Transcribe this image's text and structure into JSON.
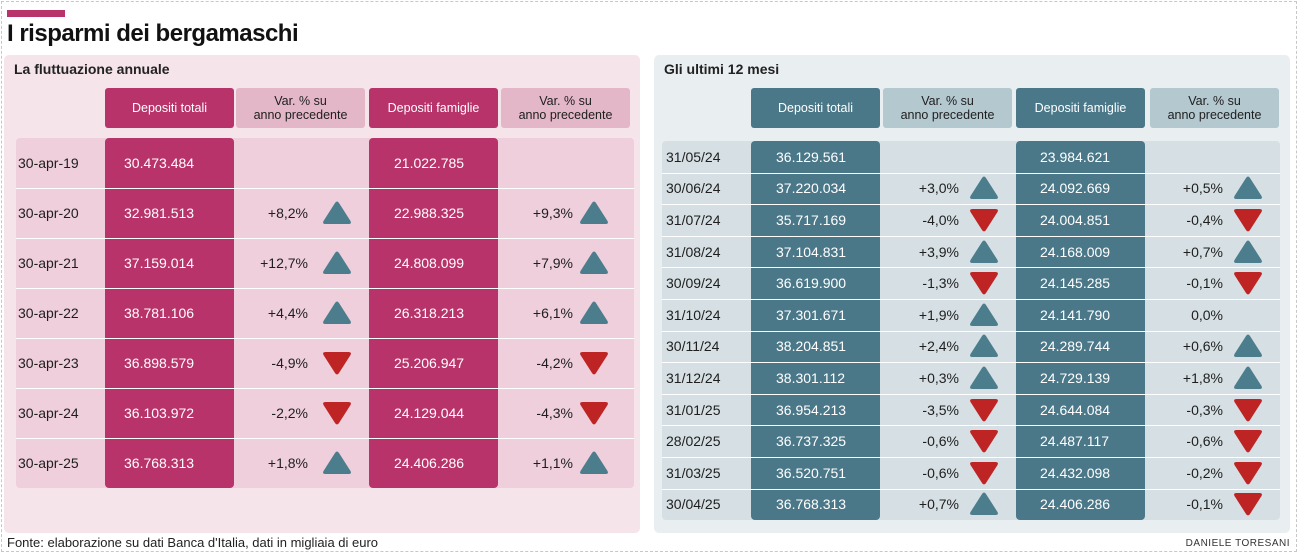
{
  "title": "I risparmi dei bergamaschi",
  "source": "Fonte: elaborazione su dati Banca d'Italia, dati in migliaia di euro",
  "credit": "DANIELE TORESANI",
  "colors": {
    "left_accent": "#b8336a",
    "left_accent_light": "#e4b7c8",
    "right_accent": "#4a7889",
    "right_accent_light": "#b4c8d0",
    "arrow_up": "#4b7d8c",
    "arrow_down": "#be2424"
  },
  "chart_data": [
    {
      "type": "table",
      "title": "La fluttuazione annuale",
      "columns": [
        "Depositi totali",
        "Var. % su\nanno precedente",
        "Depositi famiglie",
        "Var. % su\nanno precedente"
      ],
      "rows": [
        {
          "date": "30-apr-19",
          "totali": "30.473.484",
          "var_totali": "",
          "dir_totali": "",
          "famiglie": "21.022.785",
          "var_famiglie": "",
          "dir_famiglie": ""
        },
        {
          "date": "30-apr-20",
          "totali": "32.981.513",
          "var_totali": "+8,2%",
          "dir_totali": "up",
          "famiglie": "22.988.325",
          "var_famiglie": "+9,3%",
          "dir_famiglie": "up"
        },
        {
          "date": "30-apr-21",
          "totali": "37.159.014",
          "var_totali": "+12,7%",
          "dir_totali": "up",
          "famiglie": "24.808.099",
          "var_famiglie": "+7,9%",
          "dir_famiglie": "up"
        },
        {
          "date": "30-apr-22",
          "totali": "38.781.106",
          "var_totali": "+4,4%",
          "dir_totali": "up",
          "famiglie": "26.318.213",
          "var_famiglie": "+6,1%",
          "dir_famiglie": "up"
        },
        {
          "date": "30-apr-23",
          "totali": "36.898.579",
          "var_totali": "-4,9%",
          "dir_totali": "down",
          "famiglie": "25.206.947",
          "var_famiglie": "-4,2%",
          "dir_famiglie": "down"
        },
        {
          "date": "30-apr-24",
          "totali": "36.103.972",
          "var_totali": "-2,2%",
          "dir_totali": "down",
          "famiglie": "24.129.044",
          "var_famiglie": "-4,3%",
          "dir_famiglie": "down"
        },
        {
          "date": "30-apr-25",
          "totali": "36.768.313",
          "var_totali": "+1,8%",
          "dir_totali": "up",
          "famiglie": "24.406.286",
          "var_famiglie": "+1,1%",
          "dir_famiglie": "up"
        }
      ]
    },
    {
      "type": "table",
      "title": "Gli ultimi 12 mesi",
      "columns": [
        "Depositi totali",
        "Var. % su\nanno precedente",
        "Depositi famiglie",
        "Var. % su\nanno precedente"
      ],
      "rows": [
        {
          "date": "31/05/24",
          "totali": "36.129.561",
          "var_totali": "",
          "dir_totali": "",
          "famiglie": "23.984.621",
          "var_famiglie": "",
          "dir_famiglie": ""
        },
        {
          "date": "30/06/24",
          "totali": "37.220.034",
          "var_totali": "+3,0%",
          "dir_totali": "up",
          "famiglie": "24.092.669",
          "var_famiglie": "+0,5%",
          "dir_famiglie": "up"
        },
        {
          "date": "31/07/24",
          "totali": "35.717.169",
          "var_totali": "-4,0%",
          "dir_totali": "down",
          "famiglie": "24.004.851",
          "var_famiglie": "-0,4%",
          "dir_famiglie": "down"
        },
        {
          "date": "31/08/24",
          "totali": "37.104.831",
          "var_totali": "+3,9%",
          "dir_totali": "up",
          "famiglie": "24.168.009",
          "var_famiglie": "+0,7%",
          "dir_famiglie": "up"
        },
        {
          "date": "30/09/24",
          "totali": "36.619.900",
          "var_totali": "-1,3%",
          "dir_totali": "down",
          "famiglie": "24.145.285",
          "var_famiglie": "-0,1%",
          "dir_famiglie": "down"
        },
        {
          "date": "31/10/24",
          "totali": "37.301.671",
          "var_totali": "+1,9%",
          "dir_totali": "up",
          "famiglie": "24.141.790",
          "var_famiglie": "0,0%",
          "dir_famiglie": ""
        },
        {
          "date": "30/11/24",
          "totali": "38.204.851",
          "var_totali": "+2,4%",
          "dir_totali": "up",
          "famiglie": "24.289.744",
          "var_famiglie": "+0,6%",
          "dir_famiglie": "up"
        },
        {
          "date": "31/12/24",
          "totali": "38.301.112",
          "var_totali": "+0,3%",
          "dir_totali": "up",
          "famiglie": "24.729.139",
          "var_famiglie": "+1,8%",
          "dir_famiglie": "up"
        },
        {
          "date": "31/01/25",
          "totali": "36.954.213",
          "var_totali": "-3,5%",
          "dir_totali": "down",
          "famiglie": "24.644.084",
          "var_famiglie": "-0,3%",
          "dir_famiglie": "down"
        },
        {
          "date": "28/02/25",
          "totali": "36.737.325",
          "var_totali": "-0,6%",
          "dir_totali": "down",
          "famiglie": "24.487.117",
          "var_famiglie": "-0,6%",
          "dir_famiglie": "down"
        },
        {
          "date": "31/03/25",
          "totali": "36.520.751",
          "var_totali": "-0,6%",
          "dir_totali": "down",
          "famiglie": "24.432.098",
          "var_famiglie": "-0,2%",
          "dir_famiglie": "down"
        },
        {
          "date": "30/04/25",
          "totali": "36.768.313",
          "var_totali": "+0,7%",
          "dir_totali": "up",
          "famiglie": "24.406.286",
          "var_famiglie": "-0,1%",
          "dir_famiglie": "down"
        }
      ]
    }
  ]
}
